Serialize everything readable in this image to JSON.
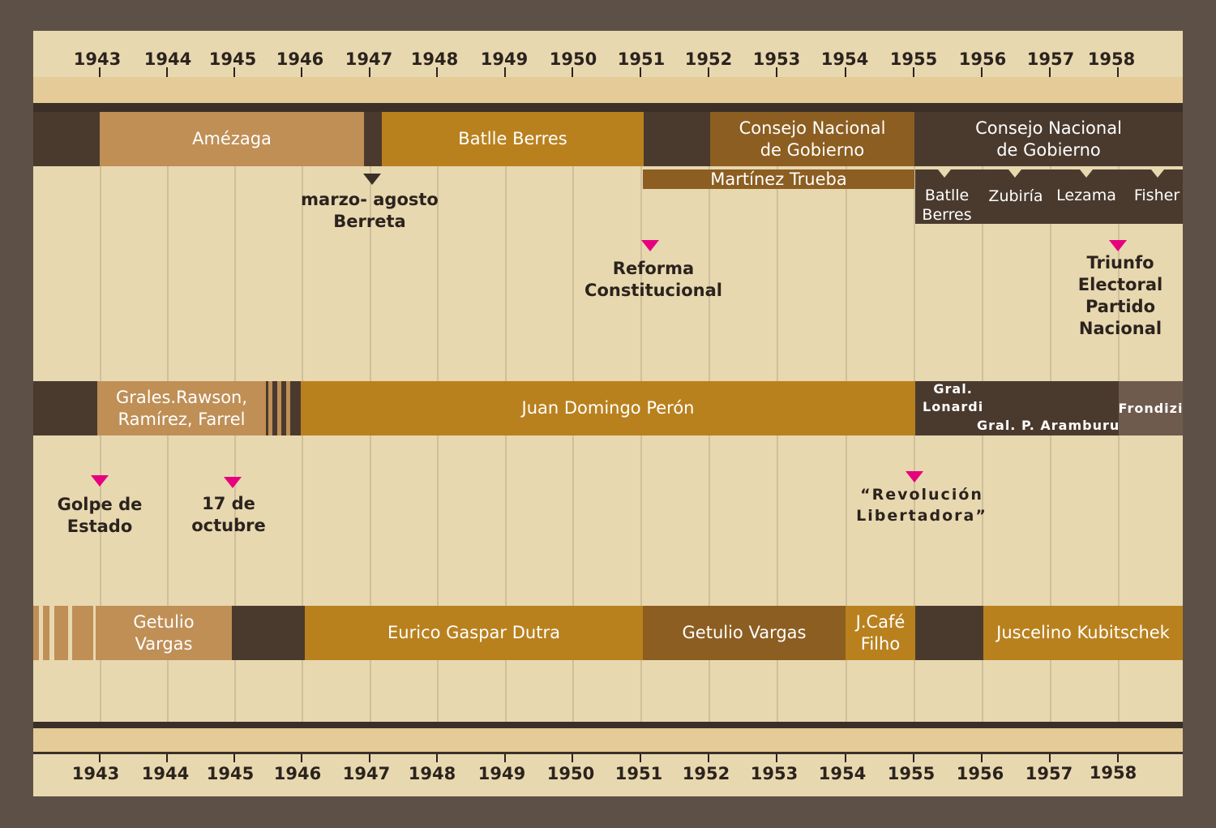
{
  "years_top": [
    "1943",
    "1944",
    "1945",
    "1946",
    "1947",
    "1948",
    "1949",
    "1950",
    "1951",
    "1952",
    "1953",
    "1954",
    "1955",
    "1956",
    "1957",
    "1958"
  ],
  "years_bottom": [
    "1943",
    "1944",
    "1945",
    "1946",
    "1947",
    "1948",
    "1949",
    "1950",
    "1951",
    "1952",
    "1953",
    "1954",
    "1955",
    "1956",
    "1957",
    "1958"
  ],
  "uruguay": {
    "amezaga": "Amézaga",
    "batlle_berres": "Batlle Berres",
    "consejo_1": "Consejo Nacional de Gobierno",
    "consejo_2": "Consejo Nacional de Gobierno",
    "martinez_trueba": "Martínez Trueba",
    "presidents": [
      "Batlle Berres",
      "Zubiría",
      "Lezama",
      "Fisher"
    ],
    "berreta_line1": "marzo- agosto",
    "berreta_line2": "Berreta",
    "reforma_line1": "Reforma",
    "reforma_line2": "Constitucional",
    "triunfo_lines": [
      "Triunfo",
      "Electoral",
      "Partido",
      "Nacional"
    ]
  },
  "argentina": {
    "grales_line1": "Grales.Rawson,",
    "grales_line2": "Ramírez, Farrel",
    "peron": "Juan Domingo Perón",
    "lonardi_line1": "Gral.",
    "lonardi_line2": "Lonardi",
    "aramburu": "Gral. P. Aramburu",
    "frondizi": "Frondizi",
    "golpe_line1": "Golpe de",
    "golpe_line2": "Estado",
    "octubre_line1": "17 de",
    "octubre_line2": "octubre",
    "revolucion_line1": "“Revolución",
    "revolucion_line2": "Libertadora”"
  },
  "brasil": {
    "getulio_line1": "Getulio",
    "getulio_line2": "Vargas",
    "dutra": "Eurico Gaspar Dutra",
    "getulio_vargas": "Getulio Vargas",
    "cafe_line1": "J.Café",
    "cafe_line2": "Filho",
    "kubitschek": "Juscelino Kubitschek"
  },
  "colors": {
    "frame": "#5d5147",
    "background": "#e8d8b0",
    "axis_band": "#e4cb97",
    "dark": "#4a3a2e",
    "tan": "#bf8f56",
    "gold": "#b9811e",
    "mid_brown": "#8c5e21",
    "grey_brown": "#6f5b4e",
    "marker_pink": "#e6007e"
  }
}
